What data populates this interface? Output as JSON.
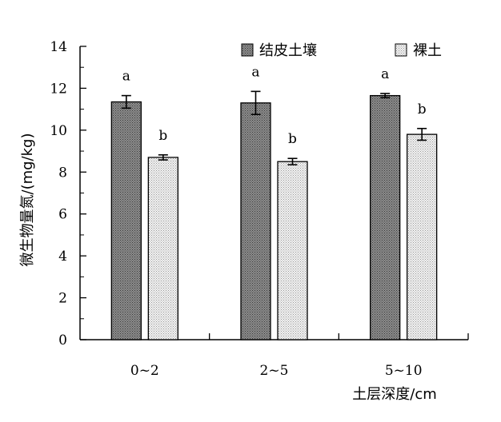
{
  "chart_data": {
    "type": "bar",
    "title": "",
    "xlabel": "土层深度/cm",
    "ylabel": "微生物量氮/(mg/kg)",
    "ylim": [
      0,
      14
    ],
    "yticks": [
      0,
      2,
      4,
      6,
      8,
      10,
      12,
      14
    ],
    "categories": [
      "0~2",
      "2~5",
      "5~10"
    ],
    "series": [
      {
        "name": "结皮土壤",
        "values": [
          11.35,
          11.3,
          11.65
        ],
        "errors": [
          0.3,
          0.55,
          0.1
        ],
        "labels": [
          "a",
          "a",
          "a"
        ],
        "color": "#7d7d7d"
      },
      {
        "name": "裸土",
        "values": [
          8.7,
          8.5,
          9.8
        ],
        "errors": [
          0.12,
          0.15,
          0.28
        ],
        "labels": [
          "b",
          "b",
          "b"
        ],
        "color": "#e6e6e6"
      }
    ],
    "legend_position": "top-right",
    "grid": false
  }
}
